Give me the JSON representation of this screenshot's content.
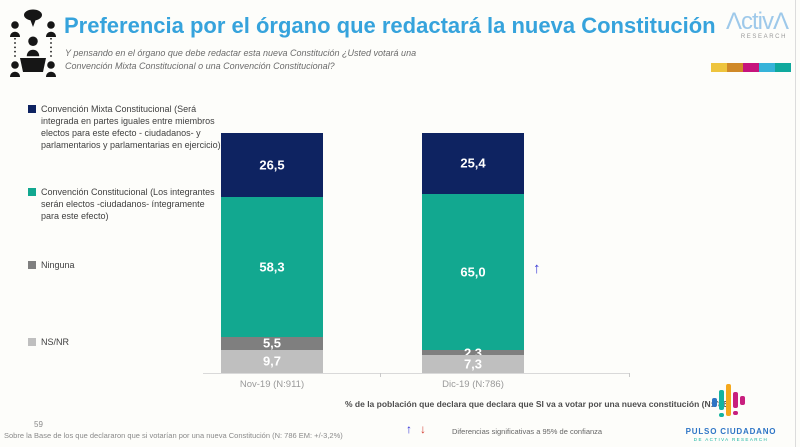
{
  "slide": {
    "title": "Preferencia por el órgano que redactará la nueva Constitución",
    "subtitle": "Y pensando en el órgano que debe redactar esta nueva Constitución ¿Usted votará una Convención Mixta Constitucional o una Convención Constitucional?",
    "page_number": "59"
  },
  "activa_logo": {
    "brand": "ΛctivΛ",
    "sub": "RESEARCH",
    "stripe_colors": [
      "#eec43d",
      "#d08928",
      "#c6147c",
      "#36b3d9",
      "#0fa99d"
    ]
  },
  "chart_data": {
    "type": "bar",
    "stacked": true,
    "unit": "percent",
    "ylim": [
      0,
      100
    ],
    "categories": [
      "Nov-19 (N:911)",
      "Dic-19 (N:786)"
    ],
    "series": [
      {
        "name": "Convención Mixta Constitucional (Será integrada en partes iguales entre miembros electos para este efecto - ciudadanos- y parlamentarios y parlamentarias en ejercicio)",
        "color": "#0e2361",
        "values": [
          26.5,
          25.4
        ],
        "labels": [
          "26,5",
          "25,4"
        ]
      },
      {
        "name": "Convención Constitucional (Los integrantes serán electos -ciudadanos- íntegramente para este efecto)",
        "color": "#12a890",
        "values": [
          58.3,
          65.0
        ],
        "labels": [
          "58,3",
          "65,0"
        ]
      },
      {
        "name": "Ninguna",
        "color": "#7f7f7f",
        "values": [
          5.5,
          2.3
        ],
        "labels": [
          "5,5",
          "2,3"
        ]
      },
      {
        "name": "NS/NR",
        "color": "#bfbfbf",
        "values": [
          9.7,
          7.3
        ],
        "labels": [
          "9,7",
          "7,3"
        ]
      }
    ],
    "significance_marker": {
      "symbol": "↑",
      "color": "#3a3ad6",
      "applies_to": "Convención Constitucional en Dic-19"
    }
  },
  "notes": {
    "population_note": "% de la población que declara que declara que SI va a votar por una nueva constitución (N:786)",
    "significance_legend": {
      "up_arrow": "↑",
      "up_color": "#2b2bd6",
      "down_arrow": "↓",
      "down_color": "#d43c31",
      "text": "Diferencias  significativas a 95% de confianza"
    },
    "base_note": "Sobre la Base de los que declararon que si votarían por una nueva Constitución (N: 786 EM: +/-3,2%)"
  },
  "pulso_logo": {
    "name": "PULSO CIUDADANO",
    "sub": "DE ACTIVA RESEARCH"
  },
  "brand_colors": {
    "blue": "#2f75c4",
    "teal": "#14b3a0",
    "orange": "#f5a81c",
    "magenta": "#c81f7e"
  }
}
